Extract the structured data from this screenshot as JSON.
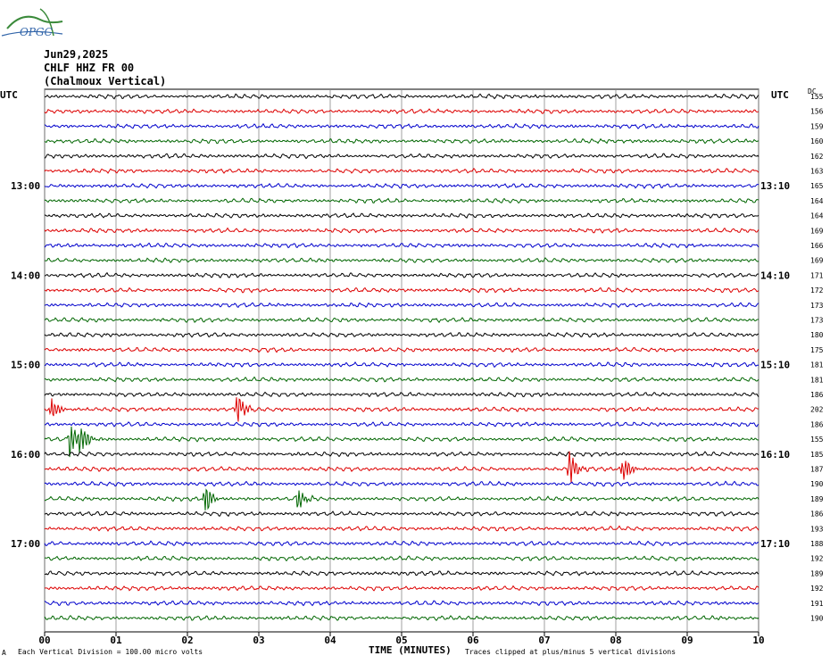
{
  "logo_text": "OPGC",
  "header": {
    "date": "Jun29,2025",
    "station": "CHLF HHZ FR 00",
    "location": "(Chalmoux Vertical)"
  },
  "left_label": "UTC",
  "right_label": "UTC",
  "dc_label": "DC",
  "footer": {
    "xlabel": "TIME (MINUTES)",
    "scale_note": "Each Vertical Division =  100.00 micro volts",
    "clip_note": "Traces clipped at plus/minus 5 vertical divisions",
    "corner_mark": "A"
  },
  "chart_data": {
    "type": "line",
    "title": "CHLF HHZ FR 00 (Chalmoux Vertical)",
    "xlabel": "TIME (MINUTES)",
    "xlim": [
      0,
      10
    ],
    "x_ticks": [
      "00",
      "01",
      "02",
      "03",
      "04",
      "05",
      "06",
      "07",
      "08",
      "09",
      "10"
    ],
    "trace_colors": [
      "#000000",
      "#dd0000",
      "#0000cc",
      "#006600"
    ],
    "left_hour_labels": [
      {
        "row": 6,
        "label": "13:00"
      },
      {
        "row": 12,
        "label": "14:00"
      },
      {
        "row": 18,
        "label": "15:00"
      },
      {
        "row": 24,
        "label": "16:00"
      },
      {
        "row": 30,
        "label": "17:00"
      }
    ],
    "right_hour_labels": [
      {
        "row": 6,
        "label": "13:10"
      },
      {
        "row": 12,
        "label": "14:10"
      },
      {
        "row": 18,
        "label": "15:10"
      },
      {
        "row": 24,
        "label": "16:10"
      },
      {
        "row": 30,
        "label": "17:10"
      }
    ],
    "dc_offsets": [
      155,
      156,
      159,
      160,
      162,
      163,
      165,
      164,
      164,
      169,
      166,
      169,
      171,
      172,
      173,
      173,
      180,
      175,
      181,
      181,
      186,
      202,
      186,
      155,
      185,
      187,
      190,
      189,
      186,
      193,
      188,
      192,
      189,
      192,
      191,
      190
    ],
    "events": [
      {
        "row": 21,
        "minute": 0.1,
        "amplitude": 3
      },
      {
        "row": 21,
        "minute": 2.7,
        "amplitude": 5
      },
      {
        "row": 23,
        "minute": 0.35,
        "amplitude": 5
      },
      {
        "row": 23,
        "minute": 0.5,
        "amplitude": 4
      },
      {
        "row": 25,
        "minute": 7.35,
        "amplitude": 5
      },
      {
        "row": 25,
        "minute": 8.1,
        "amplitude": 4
      },
      {
        "row": 27,
        "minute": 2.25,
        "amplitude": 4
      },
      {
        "row": 27,
        "minute": 3.55,
        "amplitude": 3
      }
    ]
  }
}
